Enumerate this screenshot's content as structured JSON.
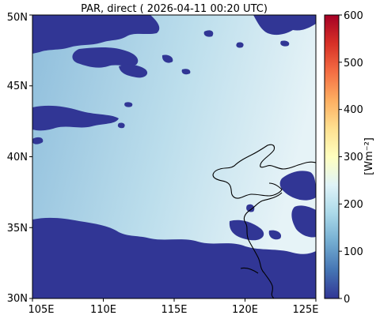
{
  "title": "PAR, direct ( 2026-04-11 00:20 UTC)",
  "map": {
    "lon_ticks": [
      "105E",
      "110E",
      "115E",
      "120E",
      "125E"
    ],
    "lat_ticks": [
      "50N",
      "45N",
      "40N",
      "35N",
      "30N"
    ],
    "lon_range": [
      105,
      125
    ],
    "lat_range": [
      30,
      50
    ]
  },
  "colorbar": {
    "label": "[Wm⁻²]",
    "ticks": [
      "600",
      "500",
      "400",
      "300",
      "200",
      "100",
      "0"
    ],
    "range": [
      0,
      600
    ],
    "colormap": "RdYlBu_r"
  },
  "colors": {
    "cloud_mask": "#313695",
    "clear_sky_high": "#e4f2f6",
    "clear_sky_low": "#8fbedc",
    "coastline": "#000000"
  }
}
